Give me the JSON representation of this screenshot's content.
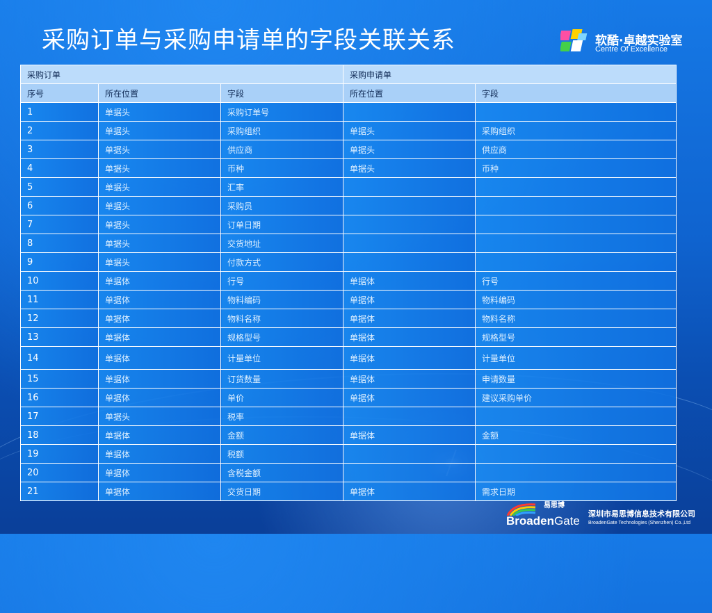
{
  "title": "采购订单与采购申请单的字段关联关系",
  "logo": {
    "cn": "软酷·卓越实验室",
    "en": "Centre Of Excellence"
  },
  "table": {
    "group_headers": [
      "采购订单",
      "采购申请单"
    ],
    "columns": [
      "序号",
      "所在位置",
      "字段",
      "所在位置",
      "字段"
    ],
    "rows": [
      [
        "1",
        "单据头",
        "采购订单号",
        "",
        ""
      ],
      [
        "2",
        "单据头",
        "采购组织",
        "单据头",
        "采购组织"
      ],
      [
        "3",
        "单据头",
        "供应商",
        "单据头",
        "供应商"
      ],
      [
        "4",
        "单据头",
        "币种",
        "单据头",
        "币种"
      ],
      [
        "5",
        "单据头",
        "汇率",
        "",
        ""
      ],
      [
        "6",
        "单据头",
        "采购员",
        "",
        ""
      ],
      [
        "7",
        "单据头",
        "订单日期",
        "",
        ""
      ],
      [
        "8",
        "单据头",
        "交货地址",
        "",
        ""
      ],
      [
        "9",
        "单据头",
        "付款方式",
        "",
        ""
      ],
      [
        "10",
        "单据体",
        "行号",
        "单据体",
        "行号"
      ],
      [
        "11",
        "单据体",
        "物料编码",
        "单据体",
        "物料编码"
      ],
      [
        "12",
        "单据体",
        "物料名称",
        "单据体",
        "物料名称"
      ],
      [
        "13",
        "单据体",
        "规格型号",
        "单据体",
        "规格型号"
      ],
      [
        "14",
        "单据体",
        "计量单位",
        "单据体",
        "计量单位"
      ],
      [
        "15",
        "单据体",
        "订货数量",
        "单据体",
        "申请数量"
      ],
      [
        "16",
        "单据体",
        "单价",
        "单据体",
        "建议采购单价"
      ],
      [
        "17",
        "单据头",
        "税率",
        "",
        ""
      ],
      [
        "18",
        "单据体",
        "金额",
        "单据体",
        "金额"
      ],
      [
        "19",
        "单据体",
        "税额",
        "",
        ""
      ],
      [
        "20",
        "单据体",
        "含税金额",
        "",
        ""
      ],
      [
        "21",
        "单据体",
        "交货日期",
        "单据体",
        "需求日期"
      ]
    ]
  },
  "footer": {
    "brand_cn": "易思博",
    "brand_en_bold": "Broaden",
    "brand_en_light": "Gate",
    "company_cn": "深圳市易思博信息技术有限公司",
    "company_en": "BroadenGate Technologies (Shenzhen) Co.,Ltd"
  },
  "colors": {
    "background": "#0f63cf",
    "header_row": "#bcdcfb",
    "data_row": "#1888f0"
  }
}
